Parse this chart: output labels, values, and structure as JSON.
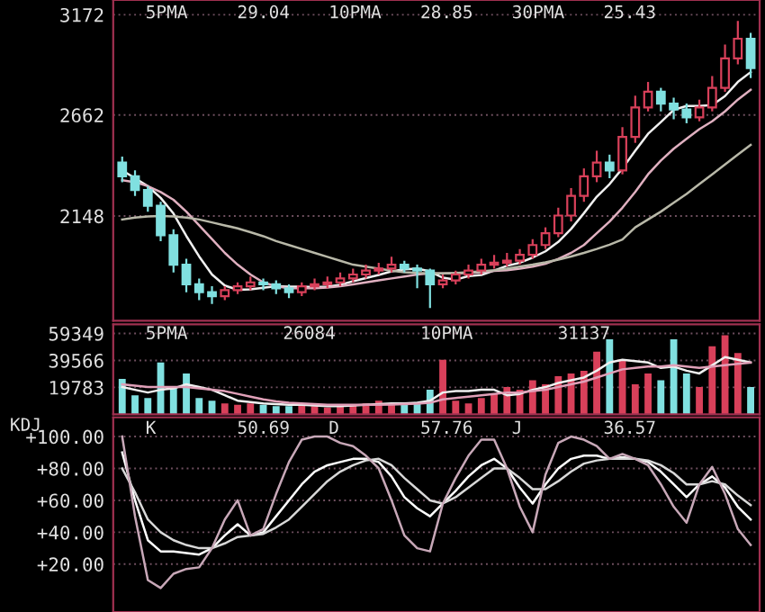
{
  "chart_data": [
    {
      "type": "candlestick",
      "annotations": [
        "5PMA",
        "29.04",
        "10PMA",
        "28.85",
        "30PMA",
        "25.43"
      ],
      "categories": [
        null,
        null,
        null,
        null,
        null,
        null,
        null,
        null,
        null,
        null,
        null,
        null,
        null,
        null,
        null,
        null,
        null,
        null,
        null,
        null,
        null,
        null,
        null,
        null,
        null,
        null,
        null,
        null,
        null,
        null,
        null,
        null,
        null,
        null,
        null,
        null,
        null,
        null,
        null,
        null,
        null,
        null,
        null,
        null,
        null,
        null,
        null,
        null,
        null,
        null
      ],
      "ohlc": [
        [
          2420,
          2450,
          2320,
          2350
        ],
        [
          2350,
          2380,
          2250,
          2280
        ],
        [
          2280,
          2300,
          2170,
          2200
        ],
        [
          2200,
          2220,
          2020,
          2050
        ],
        [
          2050,
          2080,
          1860,
          1900
        ],
        [
          1900,
          1930,
          1760,
          1800
        ],
        [
          1800,
          1830,
          1720,
          1760
        ],
        [
          1760,
          1790,
          1700,
          1740
        ],
        [
          1740,
          1790,
          1720,
          1770
        ],
        [
          1770,
          1810,
          1750,
          1790
        ],
        [
          1790,
          1840,
          1770,
          1810
        ],
        [
          1810,
          1830,
          1770,
          1800
        ],
        [
          1800,
          1820,
          1750,
          1780
        ],
        [
          1780,
          1800,
          1730,
          1760
        ],
        [
          1760,
          1810,
          1740,
          1790
        ],
        [
          1790,
          1830,
          1770,
          1800
        ],
        [
          1800,
          1840,
          1780,
          1810
        ],
        [
          1810,
          1860,
          1790,
          1830
        ],
        [
          1830,
          1880,
          1810,
          1850
        ],
        [
          1850,
          1900,
          1830,
          1870
        ],
        [
          1870,
          1910,
          1850,
          1880
        ],
        [
          1880,
          1940,
          1860,
          1900
        ],
        [
          1900,
          1920,
          1860,
          1880
        ],
        [
          1880,
          1900,
          1780,
          1870
        ],
        [
          1870,
          1880,
          1680,
          1800
        ],
        [
          1800,
          1850,
          1780,
          1820
        ],
        [
          1820,
          1870,
          1800,
          1850
        ],
        [
          1850,
          1900,
          1830,
          1870
        ],
        [
          1870,
          1930,
          1850,
          1900
        ],
        [
          1900,
          1950,
          1880,
          1910
        ],
        [
          1910,
          1960,
          1890,
          1920
        ],
        [
          1920,
          1980,
          1900,
          1950
        ],
        [
          1950,
          2030,
          1930,
          2000
        ],
        [
          2000,
          2090,
          1980,
          2060
        ],
        [
          2060,
          2190,
          2040,
          2150
        ],
        [
          2150,
          2290,
          2120,
          2250
        ],
        [
          2250,
          2390,
          2220,
          2350
        ],
        [
          2350,
          2480,
          2320,
          2420
        ],
        [
          2420,
          2460,
          2340,
          2380
        ],
        [
          2380,
          2600,
          2360,
          2550
        ],
        [
          2550,
          2760,
          2520,
          2700
        ],
        [
          2700,
          2830,
          2680,
          2780
        ],
        [
          2780,
          2800,
          2680,
          2720
        ],
        [
          2720,
          2750,
          2640,
          2690
        ],
        [
          2690,
          2720,
          2620,
          2650
        ],
        [
          2650,
          2740,
          2630,
          2700
        ],
        [
          2700,
          2860,
          2680,
          2800
        ],
        [
          2800,
          3020,
          2780,
          2950
        ],
        [
          2950,
          3140,
          2920,
          3050
        ],
        [
          3050,
          3080,
          2850,
          2900
        ]
      ],
      "colors": [
        "#80e0e0",
        "#80e0e0",
        "#80e0e0",
        "#80e0e0",
        "#80e0e0",
        "#80e0e0",
        "#80e0e0",
        "#80e0e0",
        "#d8405a",
        "#d8405a",
        "#d8405a",
        "#80e0e0",
        "#80e0e0",
        "#80e0e0",
        "#d8405a",
        "#d8405a",
        "#d8405a",
        "#d8405a",
        "#d8405a",
        "#d8405a",
        "#d8405a",
        "#d8405a",
        "#80e0e0",
        "#80e0e0",
        "#80e0e0",
        "#d8405a",
        "#d8405a",
        "#d8405a",
        "#d8405a",
        "#d8405a",
        "#d8405a",
        "#d8405a",
        "#d8405a",
        "#d8405a",
        "#d8405a",
        "#d8405a",
        "#d8405a",
        "#d8405a",
        "#80e0e0",
        "#d8405a",
        "#d8405a",
        "#d8405a",
        "#80e0e0",
        "#80e0e0",
        "#80e0e0",
        "#d8405a",
        "#d8405a",
        "#d8405a",
        "#d8405a",
        "#80e0e0"
      ],
      "series": [
        {
          "type": "line",
          "color": "#f0f0f0",
          "values": [
            2380,
            2340,
            2300,
            2240,
            2160,
            2046,
            1942,
            1850,
            1794,
            1772,
            1774,
            1782,
            1790,
            1788,
            1788,
            1786,
            1788,
            1798,
            1816,
            1832,
            1848,
            1866,
            1876,
            1880,
            1866,
            1834,
            1824,
            1842,
            1848,
            1870,
            1894,
            1910,
            1936,
            1968,
            2016,
            2082,
            2162,
            2246,
            2310,
            2390,
            2480,
            2566,
            2626,
            2688,
            2708,
            2708,
            2712,
            2758,
            2830,
            2880
          ]
        },
        {
          "type": "line",
          "color": "#e0b0c0",
          "values": [
            2330,
            2320,
            2300,
            2270,
            2230,
            2170,
            2100,
            2030,
            1960,
            1900,
            1850,
            1810,
            1790,
            1780,
            1780,
            1780,
            1784,
            1790,
            1800,
            1810,
            1820,
            1830,
            1840,
            1850,
            1856,
            1856,
            1856,
            1858,
            1862,
            1868,
            1872,
            1880,
            1890,
            1905,
            1930,
            1960,
            2000,
            2060,
            2120,
            2190,
            2270,
            2360,
            2430,
            2490,
            2540,
            2590,
            2630,
            2680,
            2740,
            2790
          ]
        },
        {
          "type": "line",
          "color": "#b8b8a8",
          "values": [
            2130,
            2140,
            2145,
            2148,
            2145,
            2140,
            2130,
            2115,
            2100,
            2085,
            2065,
            2045,
            2020,
            2000,
            1980,
            1960,
            1940,
            1920,
            1900,
            1890,
            1880,
            1870,
            1862,
            1858,
            1856,
            1856,
            1858,
            1862,
            1866,
            1872,
            1880,
            1890,
            1900,
            1912,
            1926,
            1942,
            1960,
            1980,
            2002,
            2028,
            2090,
            2130,
            2170,
            2215,
            2260,
            2310,
            2360,
            2410,
            2460,
            2510
          ]
        }
      ],
      "ylim": [
        1615,
        3247
      ],
      "yticks": [
        2148,
        2662,
        3172
      ],
      "grid": "y",
      "tick_labels": "y"
    },
    {
      "type": "bar",
      "annotations": [
        "5PMA",
        "26084",
        "10PMA",
        "31137"
      ],
      "categories": [
        null,
        null,
        null,
        null,
        null,
        null,
        null,
        null,
        null,
        null,
        null,
        null,
        null,
        null,
        null,
        null,
        null,
        null,
        null,
        null,
        null,
        null,
        null,
        null,
        null,
        null,
        null,
        null,
        null,
        null,
        null,
        null,
        null,
        null,
        null,
        null,
        null,
        null,
        null,
        null,
        null,
        null,
        null,
        null,
        null,
        null,
        null,
        null,
        null,
        null
      ],
      "series": [
        {
          "type": "bar",
          "values": [
            26000,
            14000,
            12000,
            38000,
            20000,
            30000,
            12000,
            10000,
            8000,
            7000,
            8000,
            7000,
            6000,
            6000,
            7000,
            6000,
            5000,
            6000,
            7000,
            8000,
            10000,
            8000,
            7000,
            9000,
            18000,
            40000,
            10000,
            8000,
            12000,
            15000,
            20000,
            18000,
            25000,
            22000,
            28000,
            30000,
            32000,
            46000,
            55000,
            40000,
            22000,
            30000,
            25000,
            55000,
            30000,
            20000,
            50000,
            58000,
            45000,
            20000
          ],
          "colors": [
            "#80e0e0",
            "#80e0e0",
            "#80e0e0",
            "#80e0e0",
            "#80e0e0",
            "#80e0e0",
            "#80e0e0",
            "#80e0e0",
            "#d8405a",
            "#d8405a",
            "#d8405a",
            "#80e0e0",
            "#80e0e0",
            "#80e0e0",
            "#d8405a",
            "#d8405a",
            "#d8405a",
            "#d8405a",
            "#d8405a",
            "#d8405a",
            "#d8405a",
            "#d8405a",
            "#80e0e0",
            "#80e0e0",
            "#80e0e0",
            "#d8405a",
            "#d8405a",
            "#d8405a",
            "#d8405a",
            "#d8405a",
            "#d8405a",
            "#d8405a",
            "#d8405a",
            "#d8405a",
            "#d8405a",
            "#d8405a",
            "#d8405a",
            "#d8405a",
            "#80e0e0",
            "#d8405a",
            "#d8405a",
            "#d8405a",
            "#80e0e0",
            "#80e0e0",
            "#80e0e0",
            "#d8405a",
            "#d8405a",
            "#d8405a",
            "#d8405a",
            "#80e0e0"
          ]
        },
        {
          "type": "line",
          "color": "#f0f0f0",
          "values": [
            20000,
            18000,
            16000,
            18000,
            19000,
            22000,
            20000,
            18000,
            14000,
            10000,
            9000,
            8000,
            7500,
            7000,
            7000,
            6500,
            6000,
            6000,
            6500,
            7000,
            7500,
            8000,
            8000,
            8500,
            10000,
            16000,
            17000,
            17000,
            18000,
            18000,
            14000,
            15000,
            18000,
            20000,
            23000,
            25000,
            27000,
            32000,
            38000,
            40000,
            39000,
            38000,
            34000,
            35000,
            32000,
            30000,
            36000,
            42000,
            40000,
            38000
          ]
        },
        {
          "type": "line",
          "color": "#e0a0b8",
          "values": [
            22000,
            21000,
            20000,
            20000,
            20000,
            20000,
            19000,
            18000,
            17000,
            15000,
            13000,
            11000,
            9500,
            8500,
            8000,
            7500,
            7000,
            7000,
            7000,
            7000,
            7000,
            7200,
            7500,
            7800,
            8500,
            11000,
            12000,
            13000,
            14000,
            15000,
            16000,
            16000,
            17000,
            18000,
            20000,
            22000,
            24000,
            27000,
            30000,
            33000,
            34000,
            35000,
            35000,
            36000,
            35000,
            34000,
            35000,
            36000,
            37000,
            38000
          ]
        }
      ],
      "ylim": [
        0,
        66000
      ],
      "yticks": [
        19783,
        39566,
        59349
      ],
      "grid": "y",
      "tick_labels": "y"
    },
    {
      "type": "line",
      "ylabel": "KDJ",
      "annotations": [
        "K",
        "50.69",
        "D",
        "57.76",
        "J",
        "36.57"
      ],
      "categories": [
        null,
        null,
        null,
        null,
        null,
        null,
        null,
        null,
        null,
        null,
        null,
        null,
        null,
        null,
        null,
        null,
        null,
        null,
        null,
        null,
        null,
        null,
        null,
        null,
        null,
        null,
        null,
        null,
        null,
        null,
        null,
        null,
        null,
        null,
        null,
        null,
        null,
        null,
        null,
        null,
        null,
        null,
        null,
        null,
        null,
        null,
        null,
        null,
        null,
        null
      ],
      "series": [
        {
          "color": "#ffffff",
          "values": [
            90,
            60,
            35,
            28,
            28,
            27,
            26,
            30,
            38,
            45,
            38,
            40,
            50,
            60,
            70,
            78,
            82,
            84,
            86,
            86,
            84,
            75,
            62,
            55,
            50,
            58,
            66,
            75,
            82,
            86,
            80,
            68,
            58,
            70,
            80,
            86,
            88,
            88,
            86,
            87,
            86,
            84,
            78,
            70,
            62,
            70,
            75,
            68,
            56,
            48
          ]
        },
        {
          "color": "#d8d8d8",
          "values": [
            80,
            65,
            48,
            40,
            35,
            32,
            30,
            30,
            33,
            37,
            38,
            39,
            43,
            48,
            56,
            64,
            72,
            78,
            82,
            85,
            86,
            82,
            74,
            67,
            60,
            58,
            62,
            68,
            74,
            80,
            80,
            74,
            67,
            67,
            72,
            78,
            83,
            85,
            86,
            86,
            86,
            85,
            82,
            77,
            70,
            70,
            72,
            70,
            63,
            57
          ]
        },
        {
          "color": "#c8a8b8",
          "values": [
            100,
            50,
            10,
            5,
            14,
            17,
            18,
            30,
            48,
            60,
            38,
            42,
            64,
            84,
            98,
            100,
            100,
            96,
            94,
            88,
            80,
            60,
            38,
            30,
            28,
            58,
            74,
            88,
            98,
            98,
            80,
            56,
            40,
            76,
            96,
            100,
            98,
            94,
            86,
            89,
            86,
            82,
            70,
            56,
            46,
            70,
            81,
            64,
            42,
            32
          ]
        }
      ],
      "ylim": [
        -10,
        112
      ],
      "yticks": [
        {
          "value": 20,
          "label": "+20.00"
        },
        {
          "value": 40,
          "label": "+40.00"
        },
        {
          "value": 60,
          "label": "+60.00"
        },
        {
          "value": 80,
          "label": "+80.00"
        },
        {
          "value": 100,
          "label": "+100.00"
        }
      ],
      "grid": "y",
      "tick_labels": "y"
    }
  ]
}
